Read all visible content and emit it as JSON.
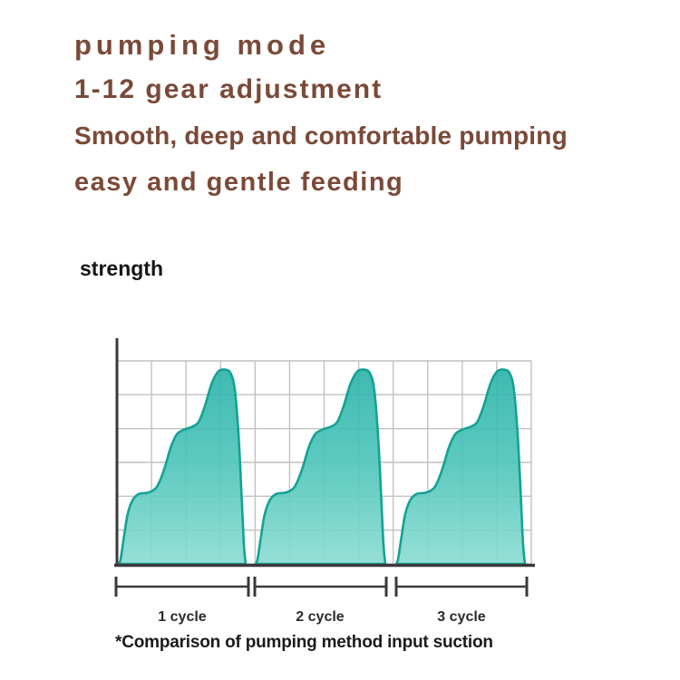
{
  "header": {
    "title": "pumping mode",
    "line2": "1-12 gear adjustment",
    "line3": "Smooth, deep and comfortable pumping",
    "line4": "easy and gentle feeding",
    "text_color": "#7a4a38"
  },
  "chart_data": {
    "type": "area",
    "ylabel": "strength",
    "caption": "*Comparison of pumping method input suction",
    "cycles": [
      "1 cycle",
      "2 cycle",
      "3 cycle"
    ],
    "grid": {
      "rows": 6,
      "cols": 12,
      "show": true
    },
    "y_range": [
      0,
      1
    ],
    "step_levels": [
      0.35,
      0.67,
      0.96
    ],
    "cycle_profile": [
      [
        0.0,
        0.0
      ],
      [
        0.015,
        0.025
      ],
      [
        0.04,
        0.13
      ],
      [
        0.07,
        0.245
      ],
      [
        0.11,
        0.315
      ],
      [
        0.16,
        0.345
      ],
      [
        0.22,
        0.35
      ],
      [
        0.27,
        0.362
      ],
      [
        0.31,
        0.39
      ],
      [
        0.36,
        0.47
      ],
      [
        0.41,
        0.575
      ],
      [
        0.46,
        0.64
      ],
      [
        0.52,
        0.663
      ],
      [
        0.58,
        0.676
      ],
      [
        0.63,
        0.7
      ],
      [
        0.68,
        0.78
      ],
      [
        0.73,
        0.885
      ],
      [
        0.78,
        0.945
      ],
      [
        0.83,
        0.957
      ],
      [
        0.88,
        0.94
      ],
      [
        0.915,
        0.855
      ],
      [
        0.945,
        0.62
      ],
      [
        0.968,
        0.33
      ],
      [
        0.985,
        0.1
      ],
      [
        1.0,
        0.0
      ]
    ],
    "colors": {
      "fill_top": "#26b1a7",
      "fill_mid": "#4cc4b9",
      "fill_bottom": "#8adcd2",
      "outline": "#14a295",
      "grid_line": "#c2c2c2",
      "axis": "#3a3a3a"
    }
  }
}
